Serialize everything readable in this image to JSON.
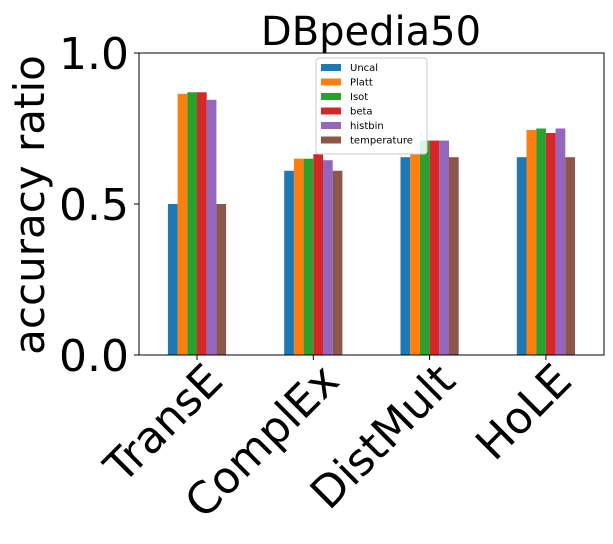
{
  "chart_data": {
    "type": "bar",
    "title": "DBpedia50",
    "xlabel": "",
    "ylabel": "accuracy ratio",
    "ylim": [
      0,
      1.0
    ],
    "yticks": [
      "0.0",
      "0.5",
      "1.0"
    ],
    "categories": [
      "TransE",
      "ComplEx",
      "DistMult",
      "HoLE"
    ],
    "legend_position": "upper center",
    "series": [
      {
        "name": "Uncal",
        "color": "#1f77b4",
        "values": [
          0.5,
          0.61,
          0.655,
          0.655
        ]
      },
      {
        "name": "Platt",
        "color": "#ff7f0e",
        "values": [
          0.865,
          0.65,
          0.665,
          0.745
        ]
      },
      {
        "name": "Isot",
        "color": "#2ca02c",
        "values": [
          0.87,
          0.65,
          0.71,
          0.75
        ]
      },
      {
        "name": "beta",
        "color": "#d62728",
        "values": [
          0.87,
          0.665,
          0.71,
          0.735
        ]
      },
      {
        "name": "histbin",
        "color": "#9467bd",
        "values": [
          0.845,
          0.645,
          0.71,
          0.75
        ]
      },
      {
        "name": "temperature",
        "color": "#8c564b",
        "values": [
          0.5,
          0.61,
          0.655,
          0.655
        ]
      }
    ]
  }
}
